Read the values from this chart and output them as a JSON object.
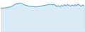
{
  "values": [
    78,
    78,
    79,
    79,
    80,
    81,
    82,
    84,
    87,
    90,
    93,
    95,
    96,
    95,
    93,
    91,
    89,
    87,
    86,
    85,
    84,
    84,
    83,
    83,
    83,
    84,
    85,
    86,
    87,
    88,
    89,
    90,
    91,
    91,
    90,
    91,
    88,
    84,
    87,
    83,
    88,
    85,
    90,
    86,
    91,
    88,
    85,
    89,
    86,
    90,
    87,
    92,
    88,
    85,
    89,
    86
  ],
  "line_color": "#4fa8d8",
  "fill_color": "#b8d9ef",
  "background_color": "#ffffff",
  "linewidth": 0.7,
  "fill_alpha": 0.5
}
